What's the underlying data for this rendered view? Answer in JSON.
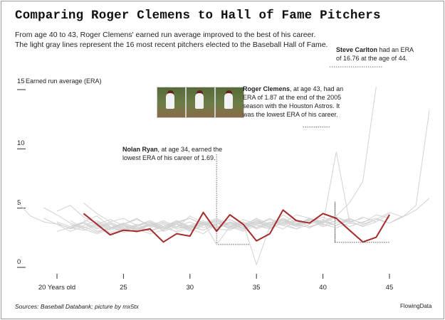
{
  "title": "Comparing Roger Clemens to Hall of Fame Pitchers",
  "subtitle": "From age 40 to 43, Roger Clemens' earned run average improved to the best of his career. The light gray lines represent the 16 most recent pitchers elected to the Baseball Hall of Fame.",
  "annotations": {
    "clemens_name": "Roger Clemens",
    "clemens_text": ", at age 43, had an ERA of 1.87 at the end of the 2005 season with the Houston Astros. It was the lowest ERA of his career.",
    "ryan_name": "Nolan Ryan",
    "ryan_text": ", at age 34, earned the lowest ERA of his career of 1.69.",
    "carlton_name": "Steve Carlton",
    "carlton_text": " had an ERA of 16.76 at the age of 44."
  },
  "footer": {
    "source": "Sources: Baseball Databank; picture by mx5tx",
    "credit": "FlowingData"
  },
  "photos": [
    "pitcher-windup-photo",
    "pitcher-stride-photo",
    "pitcher-release-photo"
  ],
  "colors": {
    "highlight": "#a52a2a",
    "background": "#d2d2d2",
    "axis": "#333333"
  },
  "chart_data": {
    "type": "line",
    "ylabel": "Earned run average (ERA)",
    "xlim": [
      17,
      48
    ],
    "ylim": [
      0,
      15
    ],
    "x_ticks": [
      20,
      25,
      30,
      35,
      40,
      45
    ],
    "x_tick_labels": [
      "20 Years old",
      "25",
      "30",
      "35",
      "40",
      "45"
    ],
    "y_ticks": [
      0,
      5,
      10,
      15
    ],
    "y_tick_labels": [
      "0",
      "5",
      "10",
      "15"
    ],
    "highlight": {
      "name": "Roger Clemens",
      "x": [
        22,
        23,
        24,
        25,
        26,
        27,
        28,
        29,
        30,
        31,
        32,
        33,
        34,
        35,
        36,
        37,
        38,
        39,
        40,
        41,
        42,
        43,
        44,
        45
      ],
      "y": [
        4.3,
        3.4,
        2.5,
        2.9,
        2.8,
        3.0,
        1.9,
        2.6,
        2.4,
        4.4,
        2.8,
        4.2,
        3.4,
        2.0,
        2.6,
        4.6,
        3.7,
        3.5,
        4.3,
        3.9,
        2.9,
        1.9,
        2.3,
        4.2
      ]
    },
    "background_series": [
      {
        "x": [
          17,
          18,
          19,
          20,
          21,
          22,
          23,
          24,
          25,
          26,
          27,
          28,
          29,
          30,
          31,
          32,
          33,
          34,
          35,
          36,
          37,
          38,
          39,
          40,
          41
        ],
        "y": [
          5.3,
          4.1,
          3.6,
          3.4,
          3.1,
          2.9,
          3.3,
          2.6,
          3.0,
          3.2,
          2.8,
          3.4,
          2.7,
          3.1,
          3.5,
          3.0,
          2.9,
          3.4,
          3.1,
          3.6,
          3.3,
          3.0,
          3.8,
          3.5,
          4.0
        ]
      },
      {
        "x": [
          19,
          20,
          21,
          22,
          23,
          24,
          25,
          26,
          27,
          28,
          29,
          30,
          31,
          32,
          33,
          34,
          35,
          36,
          37,
          38,
          39,
          40,
          41,
          42,
          43,
          44
        ],
        "y": [
          3.9,
          3.4,
          2.8,
          3.2,
          2.7,
          3.1,
          2.9,
          3.3,
          3.6,
          2.8,
          3.2,
          3.0,
          2.6,
          3.4,
          3.8,
          3.3,
          3.7,
          3.1,
          3.5,
          4.2,
          3.9,
          3.6,
          4.1,
          5.2,
          7.0,
          16.76
        ]
      },
      {
        "x": [
          19,
          20,
          21,
          22,
          23,
          24,
          25,
          26,
          27,
          28,
          29,
          30,
          31,
          32,
          33,
          34,
          35,
          36,
          37,
          38,
          39,
          40,
          41,
          42,
          43,
          44,
          45,
          46
        ],
        "y": [
          4.8,
          4.2,
          3.5,
          3.1,
          3.4,
          2.9,
          3.3,
          3.0,
          2.6,
          2.9,
          3.4,
          3.1,
          3.6,
          1.69,
          3.2,
          2.8,
          3.3,
          3.0,
          3.6,
          3.2,
          3.9,
          3.4,
          3.1,
          3.5,
          3.3,
          3.8,
          3.5,
          4.1
        ]
      },
      {
        "x": [
          20,
          21,
          22,
          23,
          24,
          25,
          26,
          27,
          28,
          29,
          30,
          31,
          32,
          33,
          34,
          35,
          36,
          37,
          38,
          39,
          40,
          41
        ],
        "y": [
          3.6,
          3.2,
          3.5,
          2.8,
          3.1,
          3.4,
          2.9,
          3.3,
          3.0,
          3.6,
          3.2,
          2.9,
          3.5,
          3.1,
          3.8,
          3.4,
          3.0,
          3.6,
          3.3,
          3.9,
          3.6,
          4.2
        ]
      },
      {
        "x": [
          21,
          22,
          23,
          24,
          25,
          26,
          27,
          28,
          29,
          30,
          31,
          32,
          33,
          34,
          35,
          36,
          37,
          38,
          39,
          40,
          41,
          42,
          43
        ],
        "y": [
          3.0,
          3.6,
          4.1,
          3.2,
          2.7,
          3.0,
          3.5,
          3.1,
          2.8,
          3.3,
          3.7,
          3.2,
          3.6,
          3.0,
          3.4,
          3.8,
          3.3,
          3.7,
          3.2,
          3.5,
          4.0,
          3.6,
          3.9
        ]
      },
      {
        "x": [
          20,
          21,
          22,
          23,
          24,
          25,
          26,
          27,
          28,
          29,
          30,
          31,
          32,
          33,
          34,
          35,
          36,
          37,
          38,
          39,
          40
        ],
        "y": [
          4.5,
          5.0,
          4.0,
          3.5,
          3.0,
          3.4,
          3.9,
          3.2,
          3.6,
          3.1,
          4.1,
          3.5,
          3.0,
          3.6,
          3.3,
          3.9,
          3.4,
          3.0,
          3.7,
          3.2,
          3.6
        ]
      },
      {
        "x": [
          21,
          22,
          23,
          24,
          25,
          26,
          27,
          28,
          29,
          30,
          31,
          32,
          33,
          34,
          35,
          36,
          37,
          38,
          39,
          40,
          41,
          42,
          43,
          44,
          45
        ],
        "y": [
          3.4,
          3.0,
          2.6,
          3.0,
          3.5,
          3.1,
          2.8,
          3.2,
          3.7,
          3.0,
          3.4,
          3.8,
          3.3,
          2.9,
          3.5,
          3.2,
          3.9,
          3.4,
          3.1,
          3.7,
          3.3,
          3.8,
          3.5,
          4.2,
          3.9
        ]
      },
      {
        "x": [
          22,
          23,
          24,
          25,
          26,
          27,
          28,
          29,
          30,
          31,
          32,
          33,
          34,
          35,
          36,
          37,
          38,
          39,
          40
        ],
        "y": [
          3.8,
          3.3,
          2.7,
          3.2,
          2.9,
          3.5,
          3.0,
          3.4,
          2.8,
          3.3,
          3.6,
          3.1,
          3.5,
          0.0,
          3.2,
          3.7,
          3.4,
          3.9,
          3.5
        ]
      },
      {
        "x": [
          22,
          23,
          24,
          25,
          26,
          27,
          28,
          29,
          30,
          31,
          32,
          33,
          34,
          35,
          36,
          37,
          38,
          39,
          40,
          41,
          42
        ],
        "y": [
          5.2,
          4.3,
          3.6,
          3.9,
          3.3,
          3.7,
          3.2,
          3.6,
          3.9,
          3.4,
          3.0,
          3.5,
          3.1,
          3.7,
          3.3,
          3.8,
          3.4,
          3.1,
          3.6,
          3.3,
          3.9
        ]
      },
      {
        "x": [
          20,
          21,
          22,
          23,
          24,
          25,
          26,
          27,
          28,
          29,
          30,
          31,
          32,
          33,
          34,
          35,
          36,
          37,
          38,
          39,
          40,
          41,
          42
        ],
        "y": [
          2.8,
          3.1,
          3.5,
          3.0,
          3.4,
          2.9,
          3.3,
          3.7,
          3.2,
          3.6,
          3.1,
          3.5,
          3.9,
          3.4,
          3.0,
          3.6,
          3.2,
          4.2,
          3.5,
          3.8,
          3.4,
          9.5,
          3.6
        ]
      },
      {
        "x": [
          23,
          24,
          25,
          26,
          27,
          28,
          29,
          30,
          31,
          32,
          33,
          34,
          35,
          36,
          37,
          38,
          39,
          40,
          41,
          42,
          43,
          44,
          45
        ],
        "y": [
          3.2,
          3.6,
          3.1,
          2.7,
          3.1,
          3.5,
          3.0,
          3.3,
          2.9,
          3.4,
          3.8,
          3.2,
          3.6,
          3.1,
          3.5,
          3.0,
          3.4,
          3.8,
          3.3,
          3.7,
          3.2,
          3.6,
          4.3
        ]
      },
      {
        "x": [
          21,
          22,
          23,
          24,
          25,
          26,
          27,
          28,
          29,
          30,
          31,
          32,
          33,
          34,
          35,
          36,
          37,
          38,
          39,
          40,
          41
        ],
        "y": [
          3.7,
          3.1,
          3.4,
          3.8,
          3.3,
          2.9,
          3.4,
          3.0,
          3.5,
          3.9,
          3.3,
          3.7,
          3.2,
          3.6,
          3.0,
          3.4,
          3.8,
          3.3,
          3.7,
          3.2,
          3.5
        ]
      },
      {
        "x": [
          20,
          21,
          22,
          23,
          24,
          25,
          26,
          27,
          28,
          29,
          30,
          31,
          32,
          33,
          34,
          35,
          36,
          37,
          38,
          39,
          40,
          41,
          42,
          43,
          44,
          45,
          46,
          47,
          48
        ],
        "y": [
          3.5,
          3.0,
          3.3,
          3.7,
          3.2,
          2.8,
          3.2,
          3.6,
          3.1,
          3.5,
          2.9,
          3.3,
          3.8,
          3.2,
          3.6,
          3.1,
          3.5,
          3.9,
          3.4,
          3.8,
          3.3,
          3.7,
          3.2,
          3.6,
          3.9,
          3.5,
          4.0,
          4.6,
          5.6
        ]
      },
      {
        "x": [
          22,
          23,
          24,
          25,
          26,
          27,
          28,
          29,
          30,
          31,
          32,
          33,
          34,
          35,
          36,
          37,
          38,
          39,
          40,
          41,
          42,
          43,
          44
        ],
        "y": [
          4.0,
          3.5,
          3.0,
          3.4,
          3.8,
          3.3,
          2.9,
          3.4,
          3.0,
          3.5,
          3.1,
          3.6,
          3.2,
          3.7,
          3.3,
          3.8,
          3.4,
          3.9,
          3.5,
          4.0,
          3.5,
          4.0,
          3.6
        ]
      },
      {
        "x": [
          21,
          22,
          23,
          24,
          25,
          26,
          27,
          28,
          29,
          30,
          31,
          32,
          33,
          34,
          35,
          36,
          37,
          38,
          39
        ],
        "y": [
          3.2,
          3.6,
          3.1,
          3.5,
          3.0,
          3.4,
          2.8,
          3.2,
          3.7,
          3.2,
          3.6,
          3.1,
          3.5,
          3.0,
          3.4,
          3.9,
          3.4,
          3.8,
          3.5
        ]
      },
      {
        "x": [
          23,
          24,
          25,
          26,
          27,
          28,
          29,
          30,
          31,
          32,
          33,
          34,
          35,
          36,
          37,
          38,
          39,
          40,
          41,
          42,
          43,
          44,
          45,
          46,
          47,
          48
        ],
        "y": [
          3.6,
          3.1,
          3.5,
          3.0,
          3.3,
          3.7,
          3.2,
          3.6,
          3.1,
          3.5,
          3.0,
          3.4,
          3.8,
          3.3,
          3.7,
          3.2,
          3.6,
          4.0,
          3.5,
          3.9,
          3.4,
          3.8,
          4.4,
          4.0,
          5.0,
          13.0
        ]
      }
    ]
  }
}
